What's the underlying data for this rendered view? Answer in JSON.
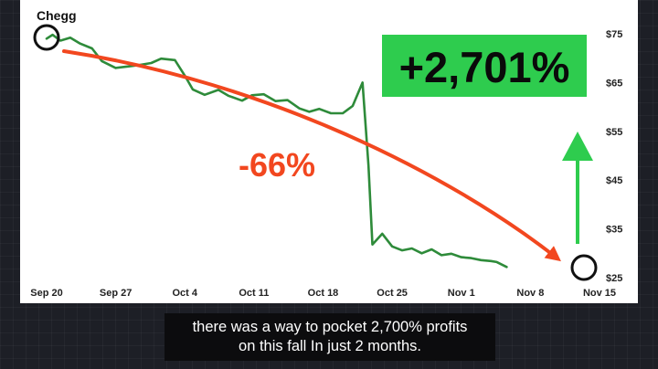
{
  "chart_data": {
    "type": "line",
    "title": "Chegg",
    "x_ticks": [
      "Sep 20",
      "Sep 27",
      "Oct 4",
      "Oct 11",
      "Oct 18",
      "Oct 25",
      "Nov 1",
      "Nov 8",
      "Nov 15"
    ],
    "y_ticks": [
      "$75",
      "$65",
      "$55",
      "$45",
      "$35",
      "$25"
    ],
    "ylim": [
      25,
      75
    ],
    "series": [
      {
        "color": "#2e8b3a",
        "points": [
          [
            0,
            74.0
          ],
          [
            0.6,
            74.8
          ],
          [
            1.4,
            73.6
          ],
          [
            2.4,
            74.2
          ],
          [
            3.4,
            73.0
          ],
          [
            4.6,
            72.0
          ],
          [
            5.6,
            69.4
          ],
          [
            7.0,
            68.0
          ],
          [
            8.2,
            68.3
          ],
          [
            9.4,
            68.6
          ],
          [
            10.6,
            69.0
          ],
          [
            11.6,
            69.9
          ],
          [
            13.0,
            69.6
          ],
          [
            14.0,
            66.4
          ],
          [
            14.8,
            63.6
          ],
          [
            16.0,
            62.5
          ],
          [
            17.4,
            63.5
          ],
          [
            18.4,
            62.3
          ],
          [
            19.8,
            61.3
          ],
          [
            20.8,
            62.4
          ],
          [
            22.0,
            62.6
          ],
          [
            23.2,
            61.2
          ],
          [
            24.4,
            61.4
          ],
          [
            25.6,
            59.7
          ],
          [
            26.6,
            59.0
          ],
          [
            27.6,
            59.6
          ],
          [
            28.8,
            58.7
          ],
          [
            30.0,
            58.7
          ],
          [
            31.0,
            60.2
          ],
          [
            32.0,
            65.0
          ],
          [
            32.6,
            48.0
          ],
          [
            33.0,
            31.8
          ],
          [
            34.0,
            34.0
          ],
          [
            35.0,
            31.4
          ],
          [
            36.0,
            30.6
          ],
          [
            37.0,
            31.0
          ],
          [
            38.0,
            30.0
          ],
          [
            39.0,
            30.8
          ],
          [
            40.0,
            29.6
          ],
          [
            41.0,
            29.9
          ],
          [
            42.0,
            29.2
          ],
          [
            43.0,
            29.0
          ],
          [
            44.0,
            28.6
          ],
          [
            45.0,
            28.4
          ],
          [
            45.6,
            28.2
          ],
          [
            46.6,
            27.2
          ]
        ]
      }
    ],
    "annotations": {
      "gain_label": "+2,701%",
      "decline_label": "-66%",
      "gain_color": "#2ecc4e",
      "decline_color": "#f2471f"
    }
  },
  "subtitle": {
    "line1": "there was a way to pocket 2,700% profits",
    "line2": "on this fall In just 2 months."
  }
}
